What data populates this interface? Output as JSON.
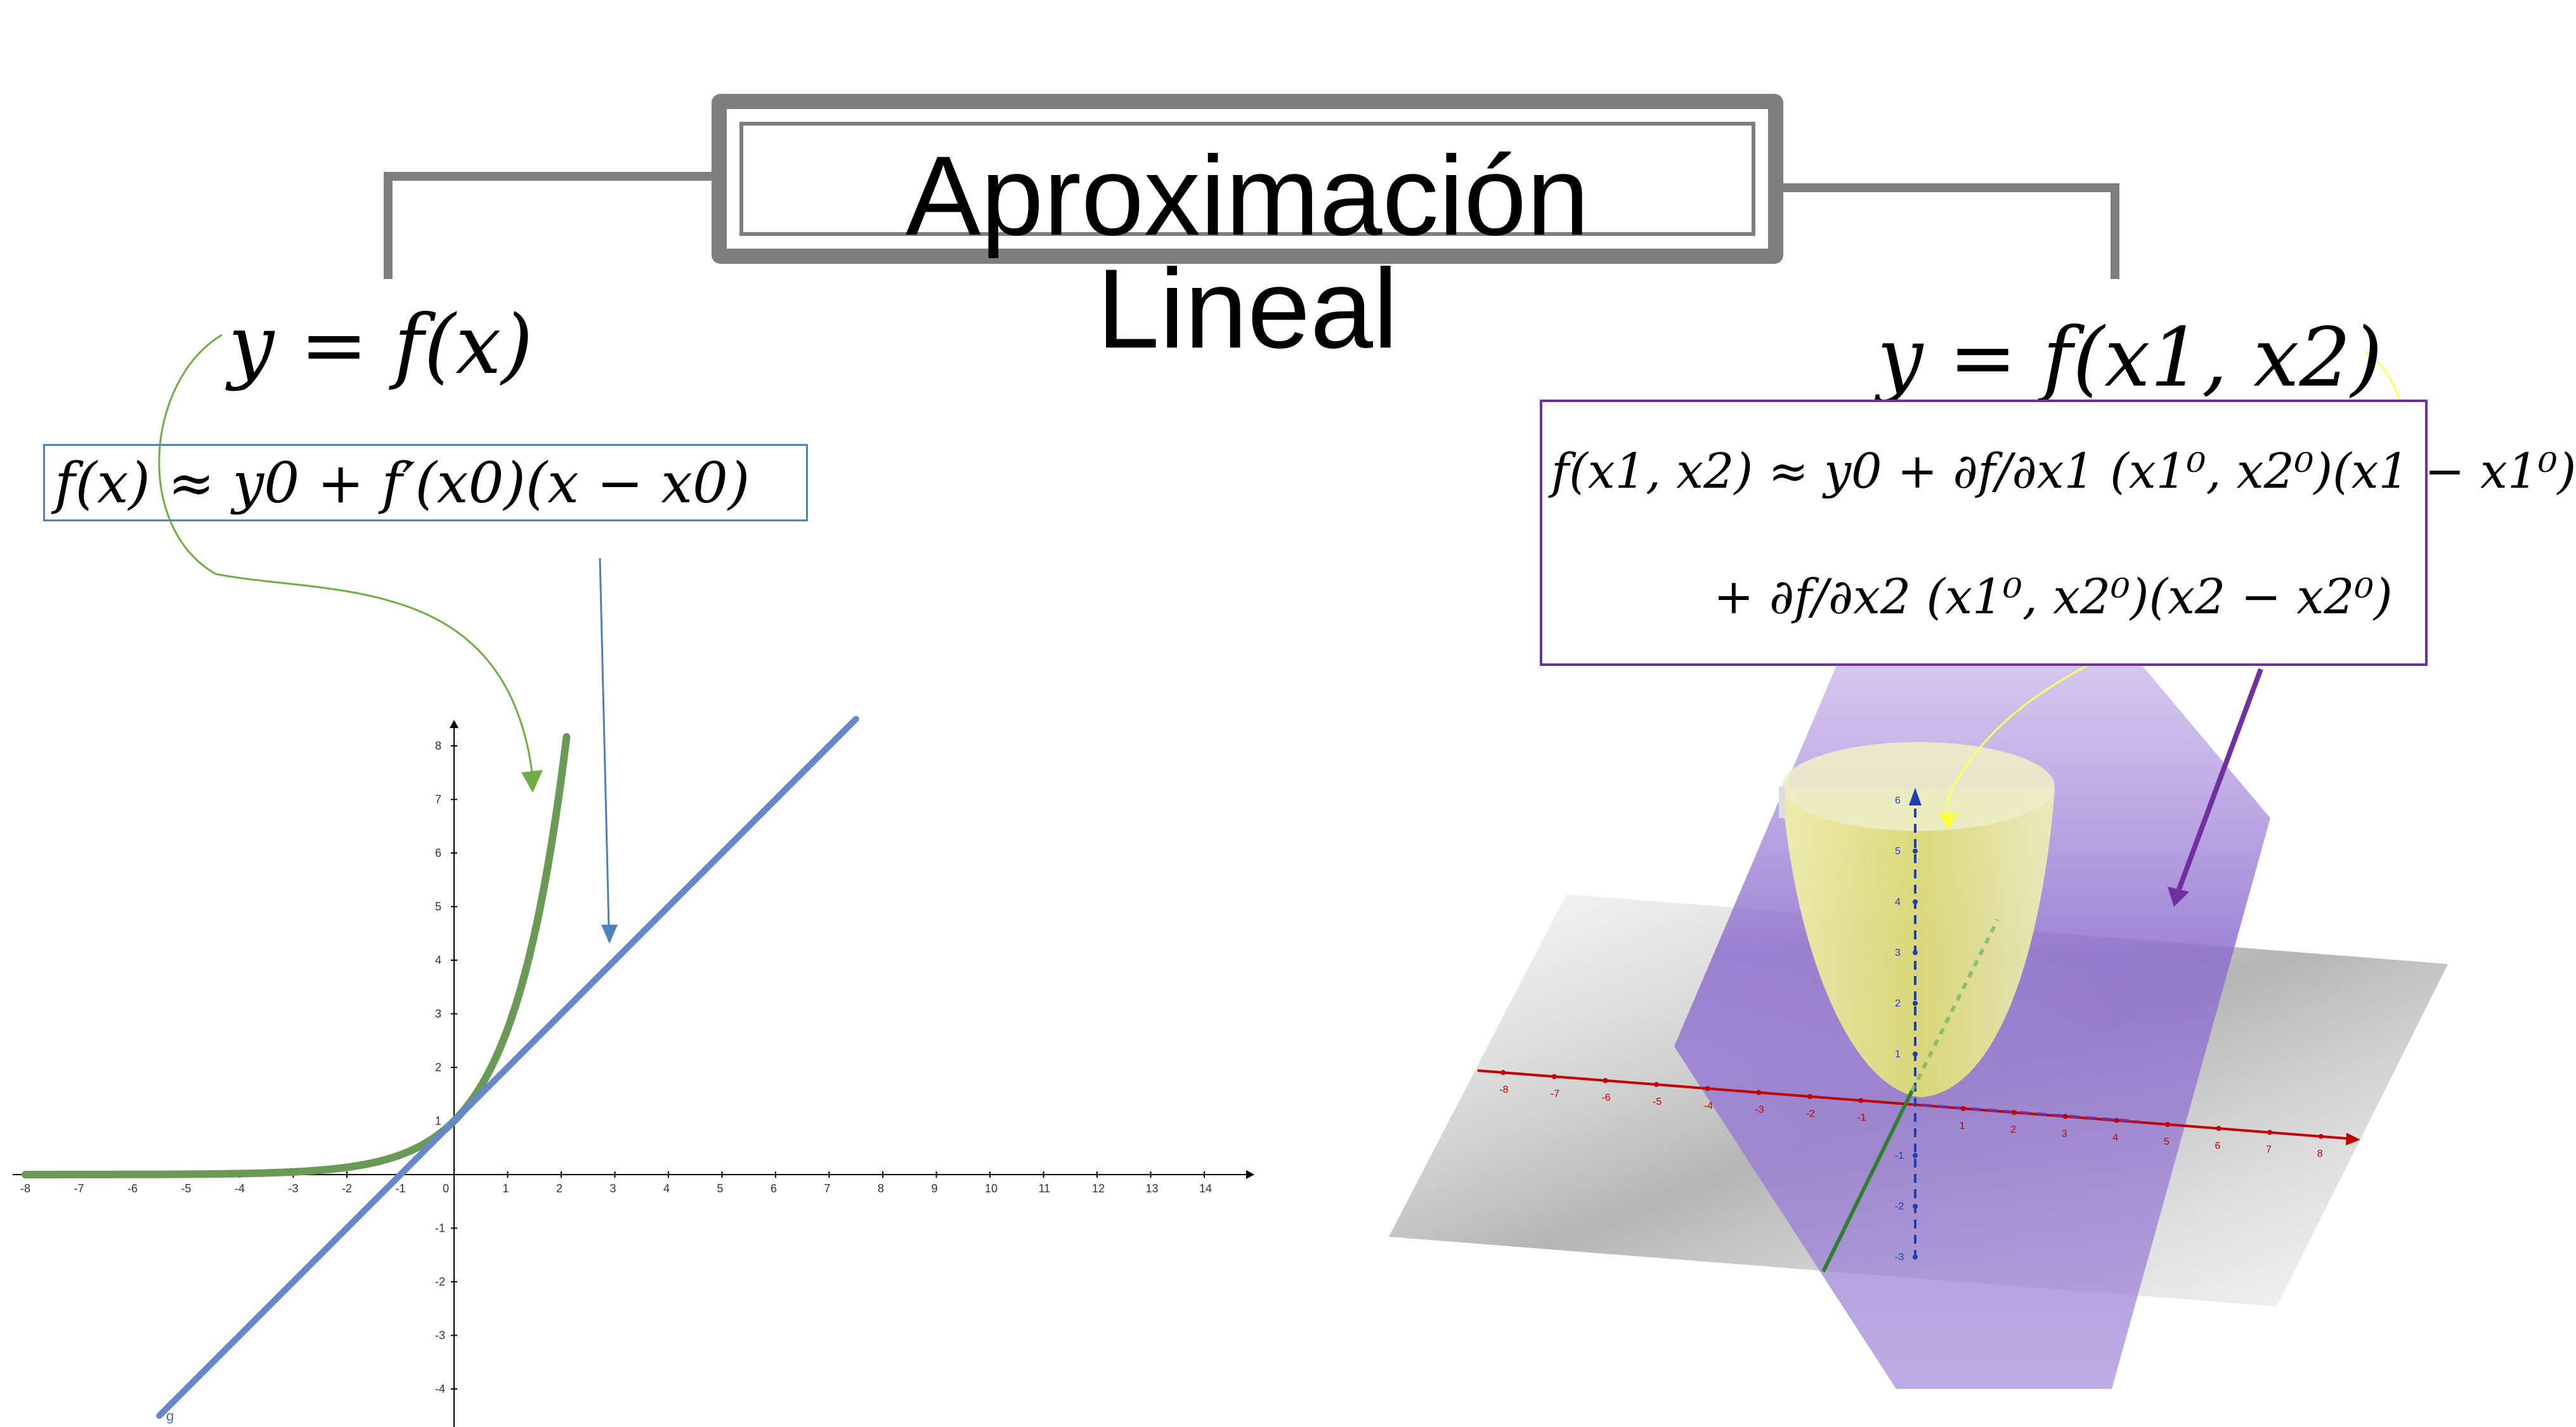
{
  "title": "Aproximación Lineal",
  "left": {
    "function": "y = f(x)",
    "approximation": "f(x) ≈ y0 + f′(x0)(x − x0)",
    "graph_label": "g",
    "x_ticks": [
      "-8",
      "-7",
      "-6",
      "-5",
      "-4",
      "-3",
      "-2",
      "-1",
      "0",
      "1",
      "2",
      "3",
      "4",
      "5",
      "6",
      "7",
      "8",
      "9",
      "10",
      "11",
      "12",
      "13",
      "14"
    ],
    "y_ticks": [
      "8",
      "7",
      "6",
      "5",
      "4",
      "3",
      "2",
      "1",
      "-1",
      "-2",
      "-3",
      "-4"
    ]
  },
  "right": {
    "function": "y = f(x1, x2)",
    "approximation_line1": "f(x1, x2) ≈ y0 + ∂f/∂x1 (x1⁰, x2⁰)(x1 − x1⁰)",
    "approximation_line2": "+ ∂f/∂x2 (x1⁰, x2⁰)(x2 − x2⁰)",
    "x_ticks_3d": [
      "-8",
      "-7",
      "-6",
      "-5",
      "-4",
      "-3",
      "-2",
      "-1",
      "1",
      "2",
      "3",
      "4",
      "5",
      "6",
      "7",
      "8"
    ],
    "z_ticks_3d": [
      "6",
      "5",
      "4",
      "3",
      "2",
      "1",
      "-1",
      "-2",
      "-3"
    ]
  },
  "colors": {
    "curve": "#6a9a56",
    "tangent": "#6688c8",
    "paraboloid": "#e6e680",
    "plane": "#9a7fd0",
    "grey_plane": "#b0b0b0",
    "title_frame": "#7f7f7f",
    "purple_box": "#7030a0",
    "blue_box": "#4f81bd"
  },
  "chart_data": {
    "type": "line",
    "title": "",
    "xlabel": "",
    "ylabel": "",
    "xlim": [
      -8,
      15
    ],
    "ylim": [
      -4.5,
      8.5
    ],
    "series": [
      {
        "x": [
          -8,
          -6,
          -4,
          -3,
          -2,
          -1,
          -0.5,
          0,
          0.5,
          1,
          1.5,
          2,
          2.1
        ],
        "values": [
          0.0003,
          0.0025,
          0.018,
          0.05,
          0.135,
          0.368,
          0.607,
          1,
          1.649,
          2.718,
          4.482,
          7.389,
          8.166
        ]
      },
      {
        "x": [
          -5.5,
          7.5
        ],
        "values": [
          -4.5,
          8.5
        ]
      }
    ]
  }
}
